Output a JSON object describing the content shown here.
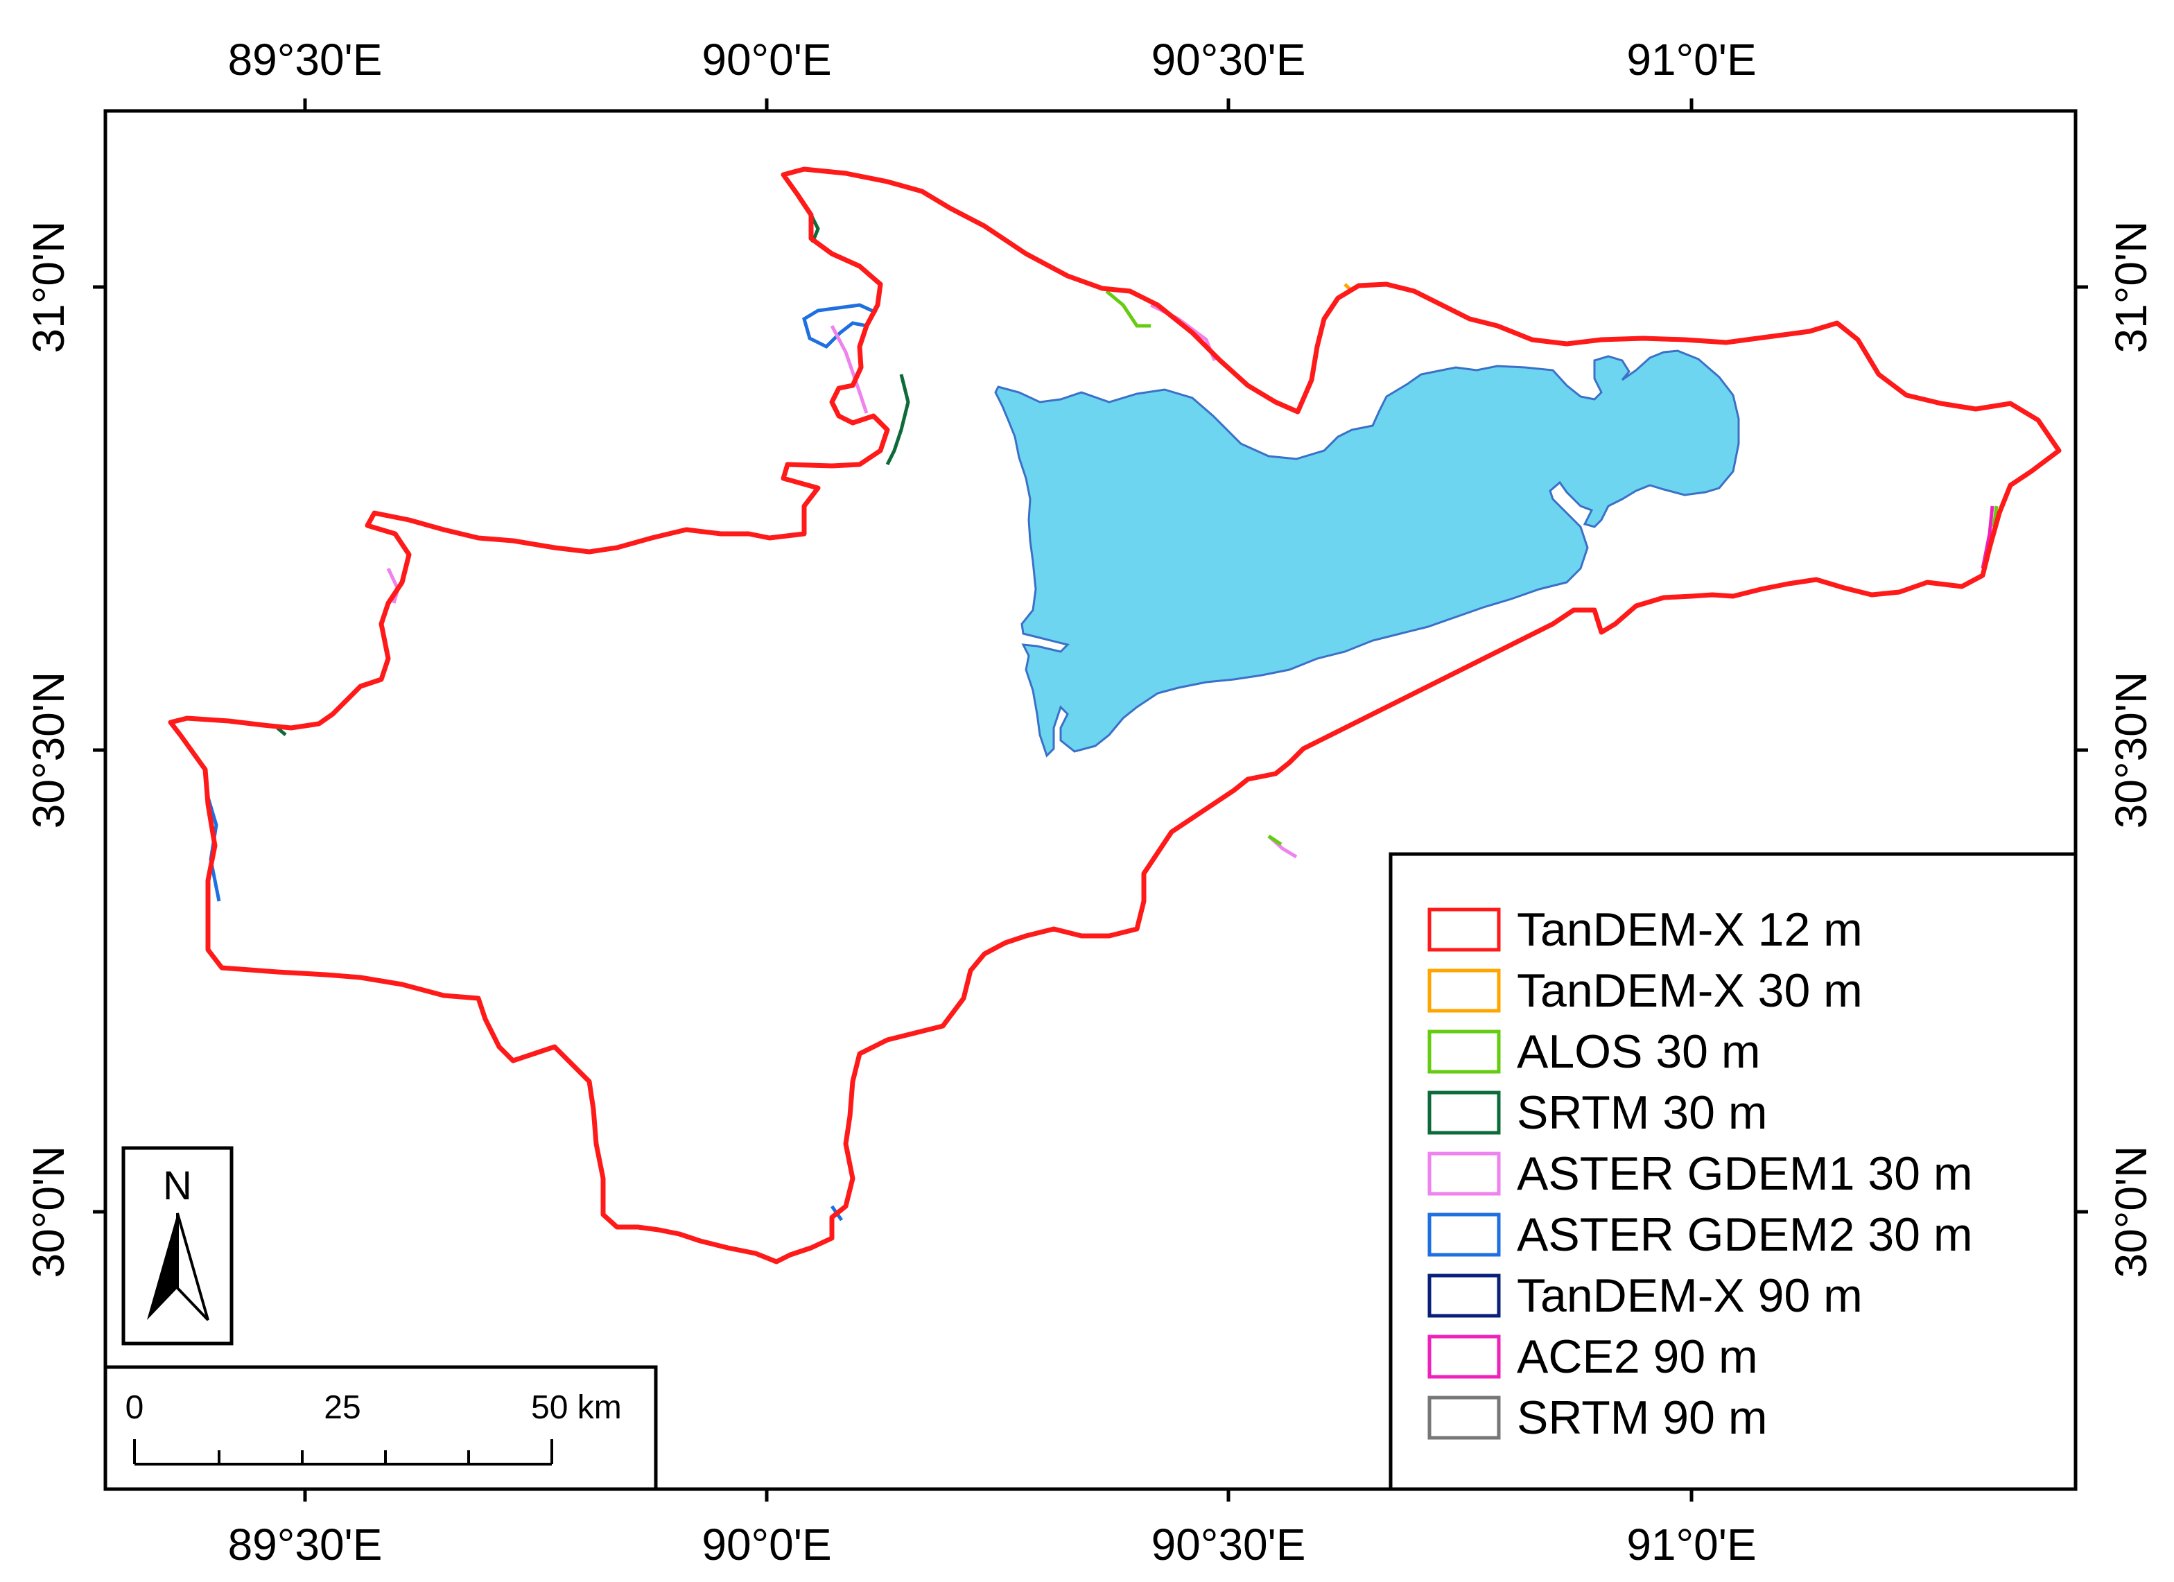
{
  "map": {
    "top_lon_labels": [
      "89°30'E",
      "90°0'E",
      "90°30'E",
      "91°0'E"
    ],
    "bottom_lon_labels": [
      "89°30'E",
      "90°0'E",
      "90°30'E",
      "91°0'E"
    ],
    "left_lat_labels": [
      "31°0'N",
      "30°30'N",
      "30°0'N"
    ],
    "right_lat_labels": [
      "31°0'N",
      "30°30'N",
      "30°0'N"
    ],
    "basin_fill": "#ffffff",
    "lake_fill": "#6dd5ef",
    "lake_stroke": "#3a70c8"
  },
  "legend": {
    "items": [
      {
        "label": "TanDEM-X 12 m",
        "color": "#ff1a1a"
      },
      {
        "label": "TanDEM-X 30 m",
        "color": "#ffa500"
      },
      {
        "label": "ALOS 30 m",
        "color": "#66cc11"
      },
      {
        "label": "SRTM 30 m",
        "color": "#0d6b3a"
      },
      {
        "label": "ASTER GDEM1 30 m",
        "color": "#ee82ee"
      },
      {
        "label": "ASTER GDEM2 30 m",
        "color": "#1e6fe0"
      },
      {
        "label": "TanDEM-X 90 m",
        "color": "#0a1f7a"
      },
      {
        "label": "ACE2 90 m",
        "color": "#ee22bb"
      },
      {
        "label": "SRTM 90 m",
        "color": "#777777"
      }
    ]
  },
  "north_arrow": {
    "letter": "N",
    "icon": "north-arrow-icon"
  },
  "scale_bar": {
    "ticks": [
      "0",
      "25",
      "50 km"
    ]
  }
}
